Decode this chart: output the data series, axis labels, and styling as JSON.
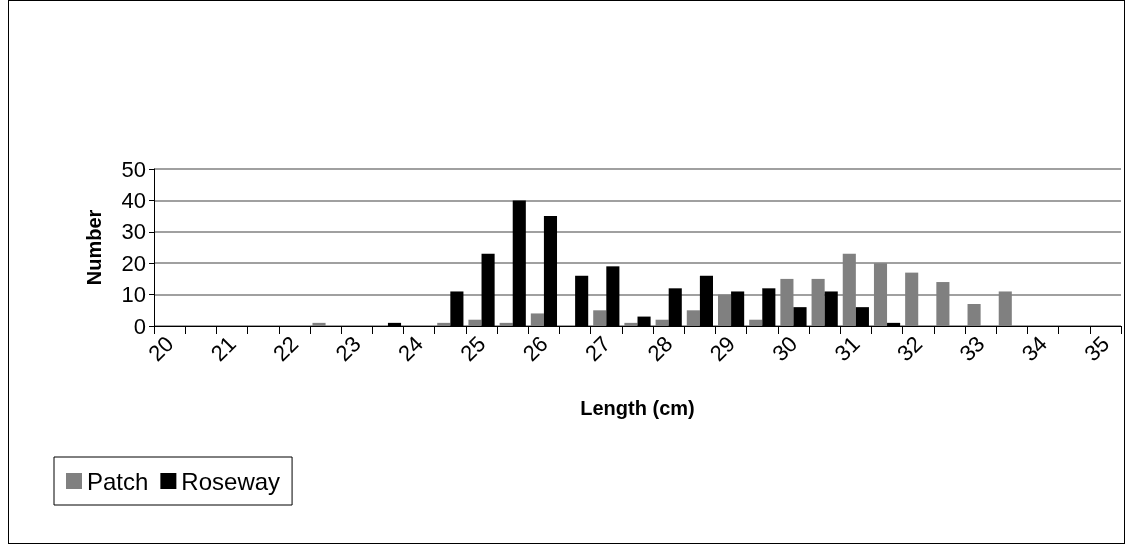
{
  "chart_data": {
    "type": "bar",
    "xlabel": "Length (cm)",
    "ylabel": "Number",
    "categories": [
      "20",
      null,
      "21",
      null,
      "22",
      null,
      "23",
      null,
      "24",
      null,
      "25",
      null,
      "26",
      null,
      "27",
      null,
      "28",
      null,
      "29",
      null,
      "30",
      null,
      "31",
      null,
      "32",
      null,
      "33",
      null,
      "34",
      null,
      "35"
    ],
    "series": [
      {
        "name": "Patch",
        "color": "#808080",
        "values": [
          0,
          0,
          0,
          0,
          0,
          1,
          0,
          0,
          0,
          1,
          2,
          1,
          4,
          0,
          5,
          1,
          2,
          5,
          10,
          2,
          15,
          15,
          23,
          20,
          17,
          14,
          7,
          11,
          0,
          0,
          0
        ]
      },
      {
        "name": "Roseway",
        "color": "#000000",
        "values": [
          0,
          0,
          0,
          0,
          0,
          0,
          0,
          1,
          0,
          11,
          23,
          40,
          35,
          16,
          19,
          3,
          12,
          16,
          11,
          12,
          6,
          11,
          6,
          1,
          0,
          0,
          0,
          0,
          0,
          0,
          0
        ]
      }
    ],
    "ylim": [
      0,
      50
    ],
    "yticks": [
      0,
      10,
      20,
      30,
      40,
      50
    ],
    "grid": "y",
    "legend": "bottom left"
  }
}
